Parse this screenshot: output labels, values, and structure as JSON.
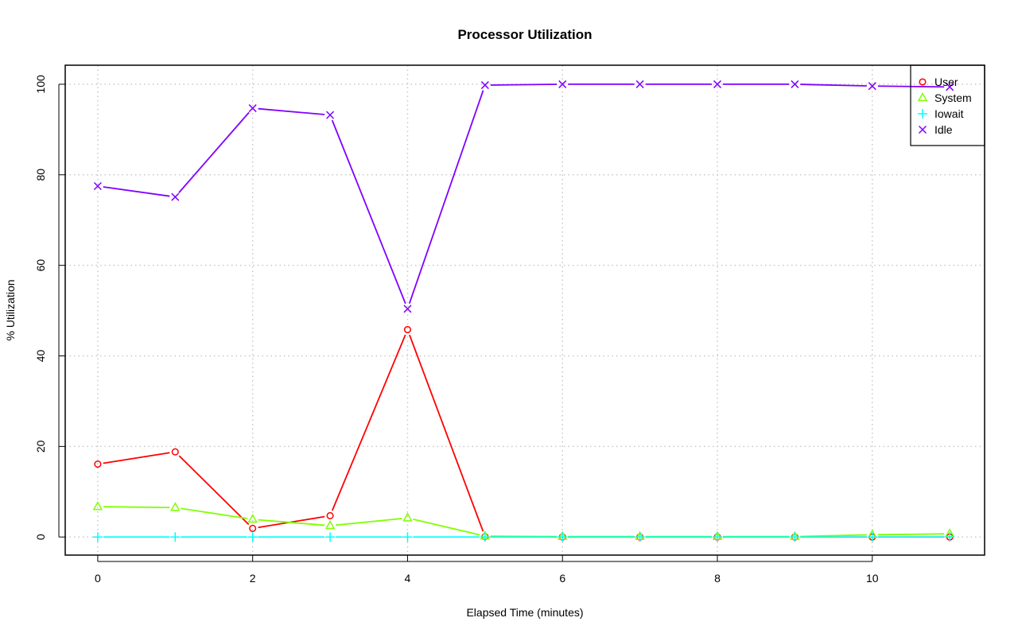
{
  "chart_data": {
    "type": "line",
    "title": "Processor Utilization",
    "xlabel": "Elapsed Time (minutes)",
    "ylabel": "% Utilization",
    "x": [
      0,
      1,
      2,
      3,
      4,
      5,
      6,
      7,
      8,
      9,
      10,
      11
    ],
    "xlim": [
      -0.42,
      11.45
    ],
    "ylim": [
      -4,
      104.2
    ],
    "xticks": [
      0,
      2,
      4,
      6,
      8,
      10
    ],
    "yticks": [
      0,
      20,
      40,
      60,
      80,
      100
    ],
    "grid": true,
    "legend_position": "top-right",
    "series": [
      {
        "name": "User",
        "marker": "circle",
        "color": "#FF0000",
        "values": [
          16.1,
          18.8,
          1.9,
          4.7,
          45.8,
          0.1,
          0.0,
          0.0,
          0.0,
          0.0,
          0.0,
          0.0
        ]
      },
      {
        "name": "System",
        "marker": "triangle",
        "color": "#80FF00",
        "values": [
          6.7,
          6.5,
          3.9,
          2.5,
          4.2,
          0.2,
          0.1,
          0.1,
          0.1,
          0.1,
          0.5,
          0.7
        ]
      },
      {
        "name": "Iowait",
        "marker": "plus",
        "color": "#00FFFF",
        "values": [
          0,
          0,
          0,
          0,
          0,
          0,
          0,
          0,
          0,
          0,
          0,
          0
        ]
      },
      {
        "name": "Idle",
        "marker": "cross",
        "color": "#8000FF",
        "values": [
          77.5,
          75.1,
          94.7,
          93.2,
          50.4,
          99.8,
          100.0,
          100.0,
          100.0,
          100.0,
          99.6,
          99.4
        ]
      }
    ]
  }
}
